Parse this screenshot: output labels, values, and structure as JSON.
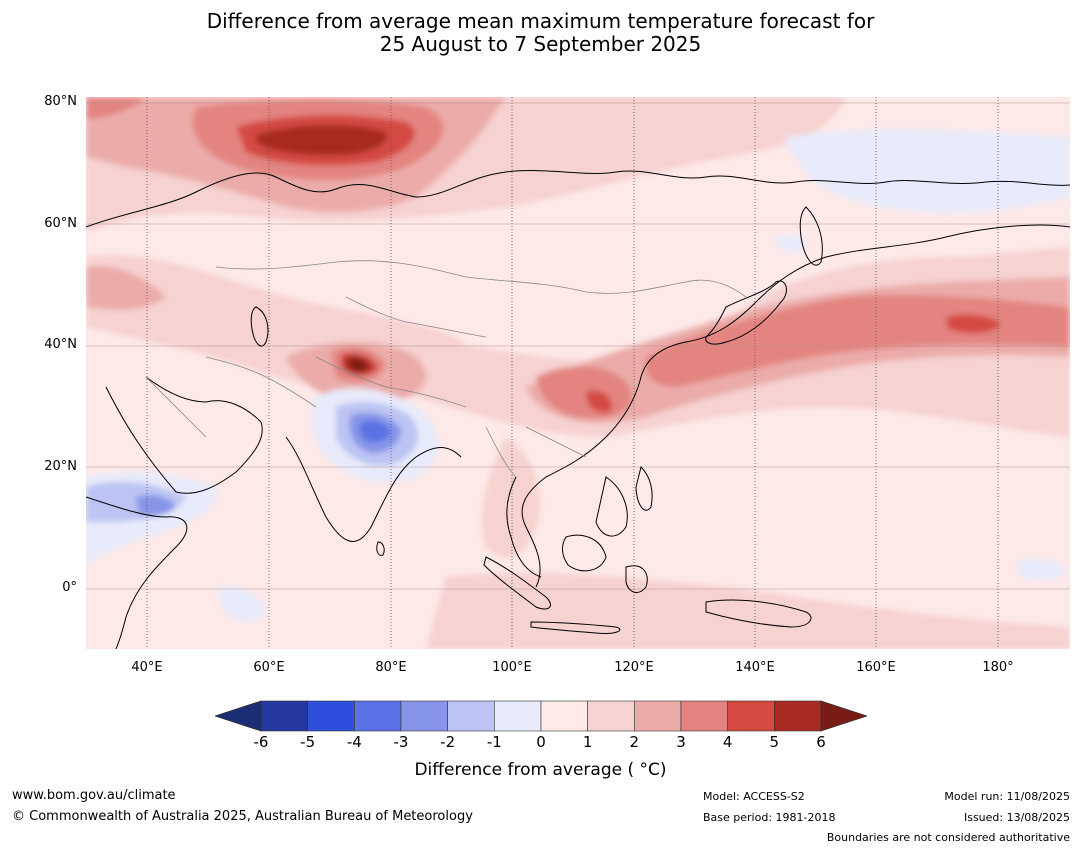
{
  "title": {
    "line1": "Difference from average mean maximum temperature forecast for",
    "line2": "25 August to 7 September 2025"
  },
  "axes": {
    "lat_labels": [
      "80°N",
      "60°N",
      "40°N",
      "20°N",
      "0°"
    ],
    "lon_labels": [
      "40°E",
      "60°E",
      "80°E",
      "100°E",
      "120°E",
      "140°E",
      "160°E",
      "180°"
    ]
  },
  "map": {
    "lon_range": [
      30,
      191
    ],
    "lat_range": [
      -10,
      80.5
    ],
    "background_class": "0 to 1",
    "anomaly_regions": [
      {
        "region": "northern Russia / Kara Sea",
        "class": "4 to 5",
        "peak_class": "5 to 6"
      },
      {
        "region": "Karakoram / western Tibet",
        "class": "4 to 5",
        "peak_class": "above 6"
      },
      {
        "region": "eastern China / Yangtze",
        "class": "3 to 4",
        "peak_class": "4 to 5"
      },
      {
        "region": "Japan and north-west Pacific",
        "class": "3 to 4",
        "peak_class": "4 to 5"
      },
      {
        "region": "north India / Ganges plain",
        "class": "-2 to -1",
        "peak_class": "-3 to -2"
      },
      {
        "region": "Horn of Africa / Arabian Sea",
        "class": "-1 to 0",
        "peak_class": "-2 to -1"
      },
      {
        "region": "East Siberian Sea / Bering",
        "class": "-1 to 0",
        "peak_class": "-1 to 0"
      }
    ]
  },
  "colorbar": {
    "ticks": [
      "-6",
      "-5",
      "-4",
      "-3",
      "-2",
      "-1",
      "0",
      "1",
      "2",
      "3",
      "4",
      "5",
      "6"
    ],
    "colors": [
      "#25389f",
      "#2e4fdc",
      "#5a72e4",
      "#8795e8",
      "#bcc4f3",
      "#e8ebfb",
      "#fde9e8",
      "#f6d2d0",
      "#ebaca9",
      "#e38480",
      "#d44a43",
      "#a8291f"
    ],
    "under_color": "#1b2d74",
    "over_color": "#7a1c16",
    "label": "Difference from average ( °C)"
  },
  "footer": {
    "website": "www.bom.gov.au/climate",
    "copyright": "© Commonwealth of Australia 2025, Australian Bureau of Meteorology",
    "model": "Model: ACCESS-S2",
    "base_period": "Base period: 1981-2018",
    "model_run": "Model run: 11/08/2025",
    "issued": "Issued: 13/08/2025",
    "disclaimer": "Boundaries are not considered authoritative"
  }
}
